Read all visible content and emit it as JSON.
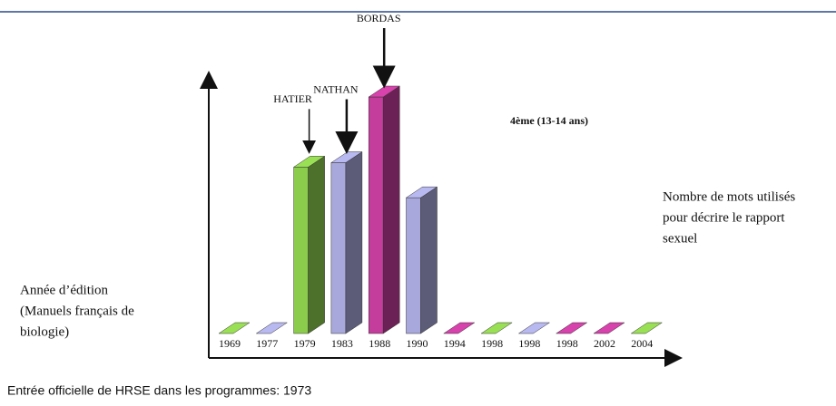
{
  "chart_data": {
    "type": "bar3d",
    "title": "4ème (13-14 ans)",
    "y_label": [
      "Nombre de mots utilisés",
      "pour décrire le rapport",
      "sexuel"
    ],
    "x_label": [
      "Année d’édition",
      "(Manuels français de",
      "biologie)"
    ],
    "annotations": [
      "HATIER",
      "NATHAN",
      "BORDAS"
    ],
    "footer": "Entrée officielle de HRSE dans les programmes: 1973",
    "categories": [
      "1969",
      "1977",
      "1979",
      "1983",
      "1988",
      "1990",
      "1994",
      "1998",
      "1998",
      "1998",
      "2002",
      "2004"
    ],
    "values": [
      0,
      0,
      38,
      39,
      54,
      31,
      0,
      0,
      0,
      0,
      0,
      0
    ],
    "colors": [
      "#8ccc4c",
      "#a8a8dc",
      "#8ccc4c",
      "#a8a8dc",
      "#c43c9c",
      "#a8a8dc",
      "#c43c9c",
      "#8ccc4c",
      "#a8a8dc",
      "#c43c9c",
      "#c43c9c",
      "#8ccc4c"
    ],
    "ylim": [
      0,
      60
    ]
  }
}
